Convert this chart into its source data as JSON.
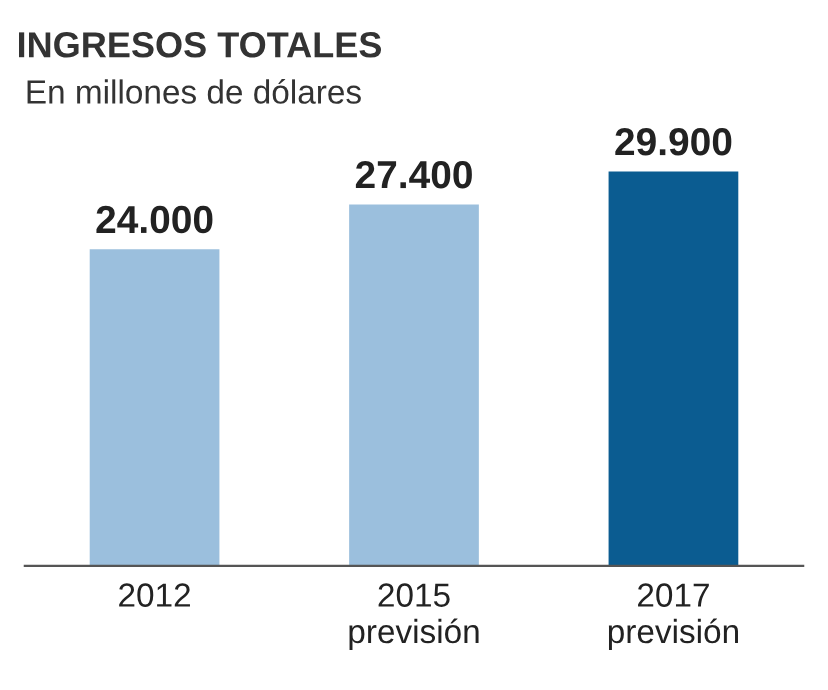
{
  "chart_data": {
    "type": "bar",
    "title": "INGRESOS TOTALES",
    "subtitle": "En millones de dólares",
    "categories": [
      "2012",
      "2015\nprevisión",
      "2017\nprevisión"
    ],
    "values": [
      24000,
      27400,
      29900
    ],
    "colors": [
      "#9bbfdd",
      "#9bbfdd",
      "#0b5c91"
    ],
    "value_labels": [
      "24.000",
      "27.400",
      "29.900"
    ],
    "tick_labels": "x",
    "grid": false,
    "legend": false
  }
}
